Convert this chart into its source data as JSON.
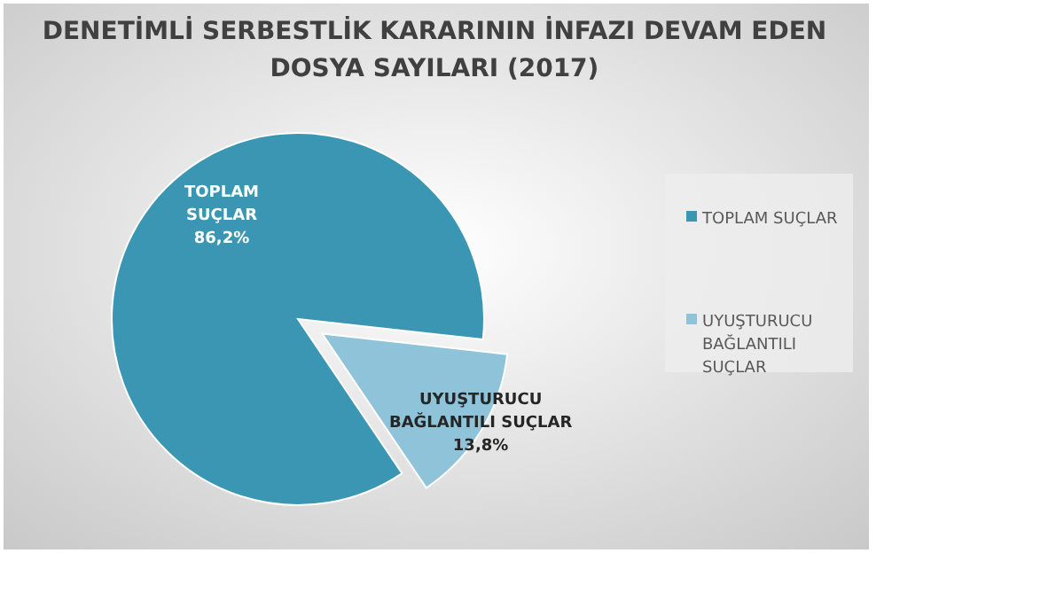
{
  "chart_data": {
    "type": "pie",
    "title": "DENETİMLİ SERBESTLİK KARARININ İNFAZI DEVAM EDEN DOSYA SAYILARI (2017)",
    "categories": [
      "TOPLAM SUÇLAR",
      "UYUŞTURUCU BAĞLANTILI SUÇLAR"
    ],
    "values": [
      86.2,
      13.8
    ],
    "colors": [
      "#3a96b2",
      "#8ec3da"
    ],
    "value_labels": [
      "86,2%",
      "13,8%"
    ],
    "legend": "right"
  }
}
